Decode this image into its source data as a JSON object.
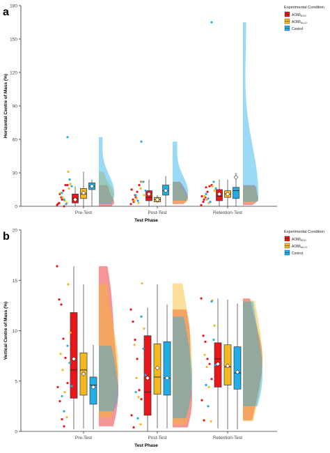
{
  "panel_labels": [
    "a",
    "b"
  ],
  "legend": {
    "title": "Experimental Condition",
    "entries": [
      {
        "label": "AOMI",
        "sub": "EGO",
        "color": "#e8151a"
      },
      {
        "label": "AOMI",
        "sub": "ALLO",
        "color": "#f6b820"
      },
      {
        "label": "Control",
        "sub": "",
        "color": "#21aee7"
      }
    ]
  },
  "colors": {
    "ego": "#e8151a",
    "allo": "#f6b820",
    "control": "#21aee7",
    "axis": "#333333"
  },
  "chart_data": [
    {
      "type": "raincloud",
      "panel": "a",
      "ylabel": "Horizontal Centre of Mass (%)",
      "xlabel": "Test Phase",
      "categories": [
        "Pre-Test",
        "Post-Test",
        "Retention-Test"
      ],
      "ylim": [
        0,
        180
      ],
      "yticks": [
        0,
        30,
        60,
        90,
        120,
        150,
        180
      ],
      "grid": false,
      "legend_position": "top-right",
      "series": [
        {
          "name": "AOMI EGO",
          "color": "#e8151a",
          "box": [
            {
              "q1": 3,
              "median": 7,
              "q3": 11,
              "lower": 0,
              "upper": 18,
              "mean": 6
            },
            {
              "q1": 5,
              "median": 8,
              "q3": 14,
              "lower": 0,
              "upper": 24,
              "mean": 11
            },
            {
              "q1": 5,
              "median": 9,
              "q3": 15,
              "lower": 0,
              "upper": 24,
              "mean": 11
            }
          ],
          "points": [
            [
              1,
              3,
              8,
              14,
              19,
              19,
              2,
              11,
              6,
              0
            ],
            [
              2,
              6,
              10,
              13,
              19,
              22,
              15,
              4,
              8
            ],
            [
              1,
              4,
              8,
              13,
              18,
              19,
              9,
              6,
              17
            ]
          ]
        },
        {
          "name": "AOMI ALLO",
          "color": "#f6b820",
          "box": [
            {
              "q1": 7,
              "median": 11,
              "q3": 16,
              "lower": 0,
              "upper": 31,
              "mean": 12
            },
            {
              "q1": 4,
              "median": 6,
              "q3": 8,
              "lower": 3,
              "upper": 10,
              "mean": 6
            },
            {
              "q1": 8,
              "median": 11,
              "q3": 14,
              "lower": 0,
              "upper": 24,
              "mean": 11
            }
          ],
          "points": [
            [
              31,
              20,
              12,
              8,
              5,
              3,
              16
            ],
            [
              22,
              10,
              5,
              7,
              3,
              16
            ],
            [
              18,
              14,
              9,
              6,
              3
            ]
          ]
        },
        {
          "name": "Control",
          "color": "#21aee7",
          "box": [
            {
              "q1": 15,
              "median": 18,
              "q3": 21,
              "lower": 0,
              "upper": 24,
              "mean": 18
            },
            {
              "q1": 10,
              "median": 14,
              "q3": 19,
              "lower": 0,
              "upper": 27,
              "mean": 14
            },
            {
              "q1": 7,
              "median": 14,
              "q3": 17,
              "lower": 0,
              "upper": 30,
              "mean": 26
            }
          ],
          "points": [
            [
              62,
              24,
              18,
              12,
              6,
              2
            ],
            [
              58,
              22,
              14,
              10,
              5
            ],
            [
              165,
              22,
              16,
              11,
              7,
              4
            ]
          ]
        }
      ]
    },
    {
      "type": "raincloud",
      "panel": "b",
      "ylabel": "Vertical Centre of Mass (%)",
      "xlabel": "Test Phase",
      "categories": [
        "Pre-Test",
        "Post-Test",
        "Retention-Test"
      ],
      "ylim": [
        0,
        20
      ],
      "yticks": [
        0,
        5,
        10,
        15,
        20
      ],
      "grid": false,
      "legend_position": "top-right",
      "series": [
        {
          "name": "AOMI EGO",
          "color": "#e8151a",
          "box": [
            {
              "q1": 3.3,
              "median": 6.1,
              "q3": 11.8,
              "lower": 0.2,
              "upper": 16.4,
              "mean": 7.2
            },
            {
              "q1": 1.6,
              "median": 3.9,
              "q3": 9.5,
              "lower": 0,
              "upper": 12.3,
              "mean": 5.3
            },
            {
              "q1": 4.4,
              "median": 7.2,
              "q3": 8.8,
              "lower": 0.3,
              "upper": 13.2,
              "mean": 6.7
            }
          ],
          "points": [
            [
              16.4,
              13.1,
              12.6,
              9.2,
              7.3,
              4.8,
              4.4,
              3.0,
              1.2,
              0.5
            ],
            [
              12.1,
              10.9,
              9.1,
              7.2,
              4.1,
              3.2,
              1.6,
              0.4
            ],
            [
              13.2,
              9.5,
              8.9,
              7.2,
              6.7,
              5.2,
              3.1,
              1.1
            ]
          ]
        },
        {
          "name": "AOMI ALLO",
          "color": "#f6b820",
          "box": [
            {
              "q1": 3.6,
              "median": 6.1,
              "q3": 7.8,
              "lower": 0.3,
              "upper": 14.6,
              "mean": 5.7
            },
            {
              "q1": 3.7,
              "median": 5.4,
              "q3": 8.7,
              "lower": 0.3,
              "upper": 14.6,
              "mean": 6.3
            },
            {
              "q1": 4.6,
              "median": 6.4,
              "q3": 8.6,
              "lower": 0.2,
              "upper": 13.1,
              "mean": 6.5
            }
          ],
          "points": [
            [
              14.6,
              9.8,
              7.7,
              6.1,
              3.9,
              1.4
            ],
            [
              14.7,
              10.2,
              8.6,
              5.3,
              3.4,
              0.7
            ],
            [
              13.0,
              10.5,
              7.6,
              6.4,
              4.4,
              1.0
            ]
          ]
        },
        {
          "name": "Control",
          "color": "#21aee7",
          "box": [
            {
              "q1": 2.7,
              "median": 4.6,
              "q3": 5.4,
              "lower": 0.2,
              "upper": 8.6,
              "mean": 4.4
            },
            {
              "q1": 3.6,
              "median": 5.3,
              "q3": 8.9,
              "lower": 0.3,
              "upper": 12.6,
              "mean": 5.3
            },
            {
              "q1": 4.2,
              "median": 5.8,
              "q3": 8.4,
              "lower": 0.2,
              "upper": 12.7,
              "mean": 5.9
            }
          ],
          "points": [
            [
              8.5,
              6.8,
              4.5,
              3.5,
              2.0
            ],
            [
              11.4,
              8.2,
              5.6,
              3.9,
              1.3
            ],
            [
              12.9,
              9.1,
              6.6,
              4.6,
              2.5
            ]
          ]
        }
      ]
    }
  ]
}
